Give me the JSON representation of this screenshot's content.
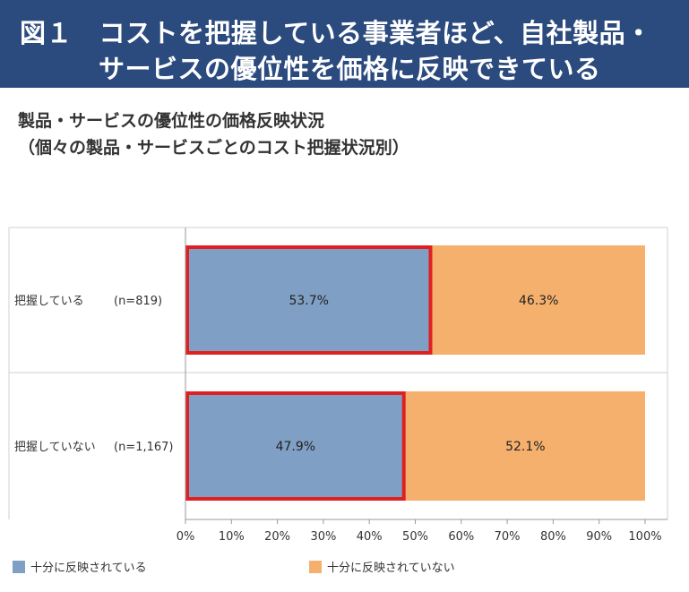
{
  "header": {
    "line1": "図１　コストを把握している事業者ほど、自社製品・",
    "line2": "サービスの優位性を価格に反映できている"
  },
  "subtitle": {
    "line1": "製品・サービスの優位性の価格反映状況",
    "line2": "（個々の製品・サービスごとのコスト把握状況別）"
  },
  "colors": {
    "banner": "#2b4a7e",
    "reflected": "#7f9fc4",
    "not_reflected": "#f5b06e",
    "highlight": "#e02020"
  },
  "chart_data": {
    "type": "bar",
    "orientation": "horizontal",
    "stacked": true,
    "categories": [
      "把握している",
      "把握していない"
    ],
    "sample_sizes": [
      "(n=819)",
      "(n=1,167)"
    ],
    "series": [
      {
        "name": "十分に反映されている",
        "values": [
          53.7,
          47.9
        ],
        "labels": [
          "53.7%",
          "47.9%"
        ]
      },
      {
        "name": "十分に反映されていない",
        "values": [
          46.3,
          52.1
        ],
        "labels": [
          "46.3%",
          "52.1%"
        ]
      }
    ],
    "xlim": [
      0,
      100
    ],
    "xticks": [
      "0%",
      "10%",
      "20%",
      "30%",
      "40%",
      "50%",
      "60%",
      "70%",
      "80%",
      "90%",
      "100%"
    ],
    "highlighted_series": "十分に反映されている"
  }
}
